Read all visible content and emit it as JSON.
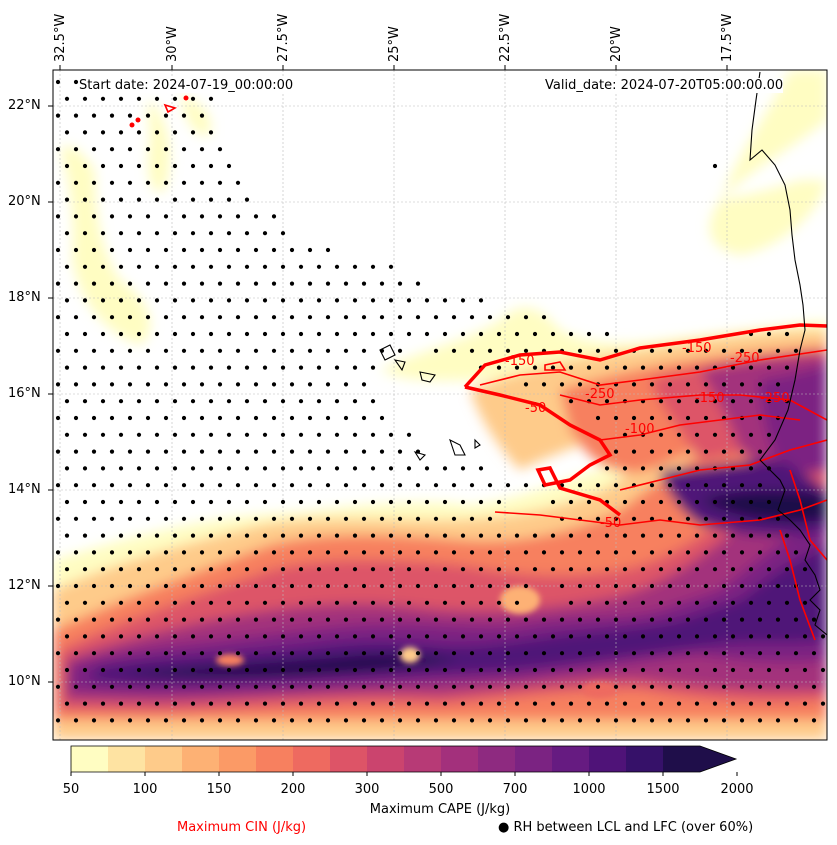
{
  "map": {
    "start_date": "Start date: 2024-07-19_00:00:00",
    "valid_date": "Valid_date: 2024-07-20T05:00:00.00",
    "lon_labels": [
      "32.5°W",
      "30°W",
      "27.5°W",
      "25°W",
      "22.5°W",
      "20°W",
      "17.5°W"
    ],
    "lat_labels": [
      "22°N",
      "20°N",
      "18°N",
      "16°N",
      "14°N",
      "12°N",
      "10°N"
    ],
    "cin_contour_labels": [
      "-150",
      "-250",
      "-50",
      "-150",
      "-250",
      "-100",
      "-150",
      "-250",
      "-50"
    ]
  },
  "colorbar": {
    "label": "Maximum CAPE (J/kg)",
    "ticks": [
      "50",
      "100",
      "150",
      "200",
      "300",
      "500",
      "700",
      "1000",
      "1500",
      "2000"
    ],
    "colors": [
      "#fffdc2",
      "#fee3a2",
      "#fecb8a",
      "#fdb174",
      "#fb9a66",
      "#f7805f",
      "#ee6a60",
      "#dd5467",
      "#cb446e",
      "#b73a76",
      "#a3307c",
      "#8e2a80",
      "#7b2382",
      "#661b81",
      "#4f1378",
      "#361169",
      "#1f0e4a"
    ]
  },
  "legend": {
    "cin": "Maximum CIN (J/kg)",
    "rh": "RH between LCL and LFC (over 60%)",
    "cin_color": "#ff0000"
  }
}
